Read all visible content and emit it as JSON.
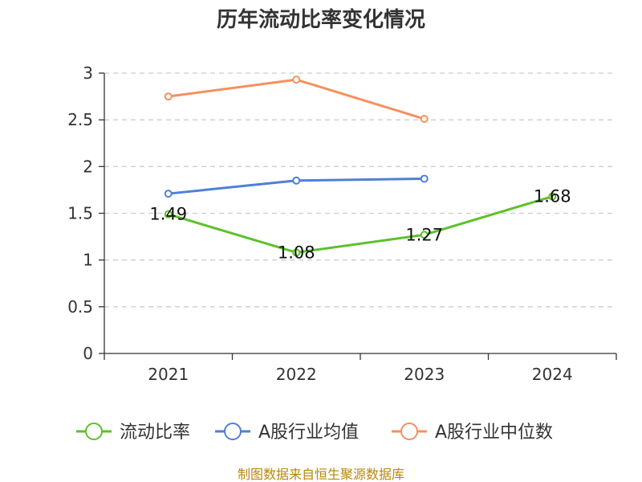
{
  "chart_data": {
    "type": "line",
    "title": "历年流动比率变化情况",
    "categories": [
      "2021",
      "2022",
      "2023",
      "2024"
    ],
    "ylim": [
      0,
      3
    ],
    "yticks": [
      "0",
      "0.5",
      "1",
      "1.5",
      "2",
      "2.5",
      "3"
    ],
    "ytick_values": [
      0,
      0.5,
      1,
      1.5,
      2,
      2.5,
      3
    ],
    "grid": true,
    "legend_position": "bottom",
    "series": [
      {
        "name": "流动比率",
        "color": "#5cc12a",
        "values": [
          1.49,
          1.08,
          1.27,
          1.68
        ],
        "labels": [
          "1.49",
          "1.08",
          "1.27",
          "1.68"
        ]
      },
      {
        "name": "A股行业均值",
        "color": "#4e80d6",
        "values": [
          1.71,
          1.85,
          1.87,
          null
        ]
      },
      {
        "name": "A股行业中位数",
        "color": "#f5905e",
        "values": [
          2.75,
          2.93,
          2.51,
          null
        ]
      }
    ]
  },
  "source": "制图数据来自恒生聚源数据库"
}
